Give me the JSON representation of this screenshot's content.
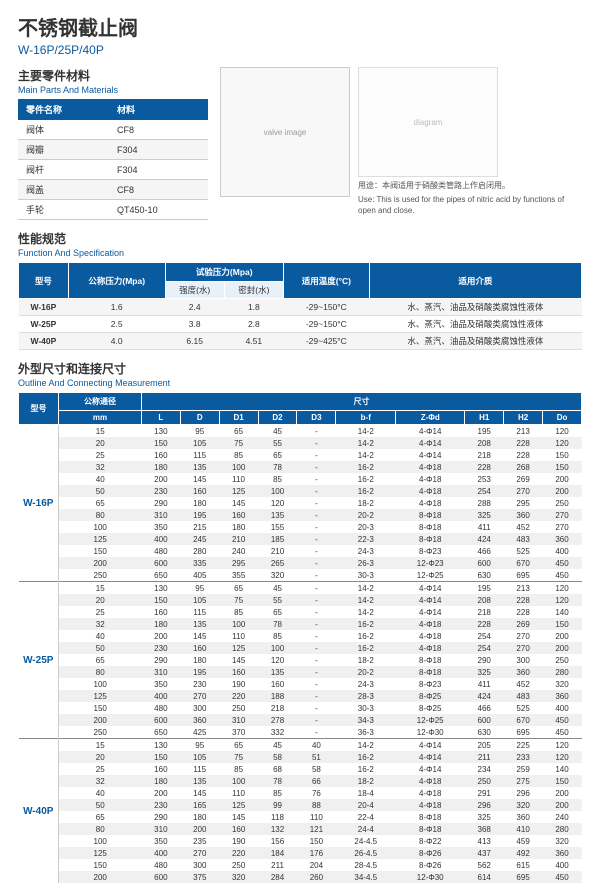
{
  "title_cn": "不锈钢截止阀",
  "title_en": "W-16P/25P/40P",
  "sections": {
    "mat_cn": "主要零件材料",
    "mat_en": "Main Parts And Materials",
    "spec_cn": "性能规范",
    "spec_en": "Function And Specification",
    "dim_cn": "外型尺寸和连接尺寸",
    "dim_en": "Outline And Connecting Measurement"
  },
  "mat": {
    "h1": "零件名称",
    "h2": "材料",
    "rows": [
      [
        "阀体",
        "CF8"
      ],
      [
        "阀瓣",
        "F304"
      ],
      [
        "阀杆",
        "F304"
      ],
      [
        "阀盖",
        "CF8"
      ],
      [
        "手轮",
        "QT450-10"
      ]
    ]
  },
  "use_cn": "用途：本阀适用于硝酸类管路上作启闭用。",
  "use_en": "Use: This is used for the pipes of nitric acid by functions of open and close.",
  "spec": {
    "h": [
      "型号",
      "公称压力(Mpa)",
      "试验压力(Mpa)",
      "适用温度(°C)",
      "适用介质"
    ],
    "sub": [
      "强度(水)",
      "密封(水)"
    ],
    "rows": [
      [
        "W-16P",
        "1.6",
        "2.4",
        "1.8",
        "-29~150°C",
        "水、蒸汽、油品及硝酸类腐蚀性液体"
      ],
      [
        "W-25P",
        "2.5",
        "3.8",
        "2.8",
        "-29~150°C",
        "水、蒸汽、油品及硝酸类腐蚀性液体"
      ],
      [
        "W-40P",
        "4.0",
        "6.15",
        "4.51",
        "-29~425°C",
        "水、蒸汽、油品及硝酸类腐蚀性液体"
      ]
    ]
  },
  "dim": {
    "h1": "型号",
    "h2": "公称通径",
    "h3": "尺寸",
    "sub": [
      "mm",
      "L",
      "D",
      "D1",
      "D2",
      "D3",
      "b-f",
      "Z-Φd",
      "H1",
      "H2",
      "Do"
    ],
    "groups": [
      {
        "model": "W-16P",
        "rows": [
          [
            "15",
            "130",
            "95",
            "65",
            "45",
            "-",
            "14-2",
            "4-Φ14",
            "195",
            "213",
            "120"
          ],
          [
            "20",
            "150",
            "105",
            "75",
            "55",
            "-",
            "14-2",
            "4-Φ14",
            "208",
            "228",
            "120"
          ],
          [
            "25",
            "160",
            "115",
            "85",
            "65",
            "-",
            "14-2",
            "4-Φ14",
            "218",
            "228",
            "150"
          ],
          [
            "32",
            "180",
            "135",
            "100",
            "78",
            "-",
            "16-2",
            "4-Φ18",
            "228",
            "268",
            "150"
          ],
          [
            "40",
            "200",
            "145",
            "110",
            "85",
            "-",
            "16-2",
            "4-Φ18",
            "253",
            "269",
            "200"
          ],
          [
            "50",
            "230",
            "160",
            "125",
            "100",
            "-",
            "16-2",
            "4-Φ18",
            "254",
            "270",
            "200"
          ],
          [
            "65",
            "290",
            "180",
            "145",
            "120",
            "-",
            "18-2",
            "4-Φ18",
            "288",
            "295",
            "250"
          ],
          [
            "80",
            "310",
            "195",
            "160",
            "135",
            "-",
            "20-2",
            "8-Φ18",
            "325",
            "360",
            "270"
          ],
          [
            "100",
            "350",
            "215",
            "180",
            "155",
            "-",
            "20-3",
            "8-Φ18",
            "411",
            "452",
            "270"
          ],
          [
            "125",
            "400",
            "245",
            "210",
            "185",
            "-",
            "22-3",
            "8-Φ18",
            "424",
            "483",
            "360"
          ],
          [
            "150",
            "480",
            "280",
            "240",
            "210",
            "-",
            "24-3",
            "8-Φ23",
            "466",
            "525",
            "400"
          ],
          [
            "200",
            "600",
            "335",
            "295",
            "265",
            "-",
            "26-3",
            "12-Φ23",
            "600",
            "670",
            "450"
          ],
          [
            "250",
            "650",
            "405",
            "355",
            "320",
            "-",
            "30-3",
            "12-Φ25",
            "630",
            "695",
            "450"
          ]
        ]
      },
      {
        "model": "W-25P",
        "rows": [
          [
            "15",
            "130",
            "95",
            "65",
            "45",
            "-",
            "14-2",
            "4-Φ14",
            "195",
            "213",
            "120"
          ],
          [
            "20",
            "150",
            "105",
            "75",
            "55",
            "-",
            "14-2",
            "4-Φ14",
            "208",
            "228",
            "120"
          ],
          [
            "25",
            "160",
            "115",
            "85",
            "65",
            "-",
            "14-2",
            "4-Φ14",
            "218",
            "228",
            "140"
          ],
          [
            "32",
            "180",
            "135",
            "100",
            "78",
            "-",
            "16-2",
            "4-Φ18",
            "228",
            "269",
            "150"
          ],
          [
            "40",
            "200",
            "145",
            "110",
            "85",
            "-",
            "16-2",
            "4-Φ18",
            "254",
            "270",
            "200"
          ],
          [
            "50",
            "230",
            "160",
            "125",
            "100",
            "-",
            "16-2",
            "4-Φ18",
            "254",
            "270",
            "200"
          ],
          [
            "65",
            "290",
            "180",
            "145",
            "120",
            "-",
            "18-2",
            "8-Φ18",
            "290",
            "300",
            "250"
          ],
          [
            "80",
            "310",
            "195",
            "160",
            "135",
            "-",
            "20-2",
            "8-Φ18",
            "325",
            "360",
            "280"
          ],
          [
            "100",
            "350",
            "230",
            "190",
            "160",
            "-",
            "24-3",
            "8-Φ23",
            "411",
            "452",
            "320"
          ],
          [
            "125",
            "400",
            "270",
            "220",
            "188",
            "-",
            "28-3",
            "8-Φ25",
            "424",
            "483",
            "360"
          ],
          [
            "150",
            "480",
            "300",
            "250",
            "218",
            "-",
            "30-3",
            "8-Φ25",
            "466",
            "525",
            "400"
          ],
          [
            "200",
            "600",
            "360",
            "310",
            "278",
            "-",
            "34-3",
            "12-Φ25",
            "600",
            "670",
            "450"
          ],
          [
            "250",
            "650",
            "425",
            "370",
            "332",
            "-",
            "36-3",
            "12-Φ30",
            "630",
            "695",
            "450"
          ]
        ]
      },
      {
        "model": "W-40P",
        "rows": [
          [
            "15",
            "130",
            "95",
            "65",
            "45",
            "40",
            "14-2",
            "4-Φ14",
            "205",
            "225",
            "120"
          ],
          [
            "20",
            "150",
            "105",
            "75",
            "58",
            "51",
            "16-2",
            "4-Φ14",
            "211",
            "233",
            "120"
          ],
          [
            "25",
            "160",
            "115",
            "85",
            "68",
            "58",
            "16-2",
            "4-Φ14",
            "234",
            "259",
            "140"
          ],
          [
            "32",
            "180",
            "135",
            "100",
            "78",
            "66",
            "18-2",
            "4-Φ18",
            "250",
            "275",
            "150"
          ],
          [
            "40",
            "200",
            "145",
            "110",
            "85",
            "76",
            "18-4",
            "4-Φ18",
            "291",
            "296",
            "200"
          ],
          [
            "50",
            "230",
            "165",
            "125",
            "99",
            "88",
            "20-4",
            "4-Φ18",
            "296",
            "320",
            "200"
          ],
          [
            "65",
            "290",
            "180",
            "145",
            "118",
            "110",
            "22-4",
            "8-Φ18",
            "325",
            "360",
            "240"
          ],
          [
            "80",
            "310",
            "200",
            "160",
            "132",
            "121",
            "24-4",
            "8-Φ18",
            "368",
            "410",
            "280"
          ],
          [
            "100",
            "350",
            "235",
            "190",
            "156",
            "150",
            "24-4.5",
            "8-Φ22",
            "413",
            "459",
            "320"
          ],
          [
            "125",
            "400",
            "270",
            "220",
            "184",
            "176",
            "26-4.5",
            "8-Φ26",
            "437",
            "492",
            "360"
          ],
          [
            "150",
            "480",
            "300",
            "250",
            "211",
            "204",
            "28-4.5",
            "8-Φ26",
            "562",
            "615",
            "400"
          ],
          [
            "200",
            "600",
            "375",
            "320",
            "284",
            "260",
            "34-4.5",
            "12-Φ30",
            "614",
            "695",
            "450"
          ]
        ]
      }
    ]
  }
}
